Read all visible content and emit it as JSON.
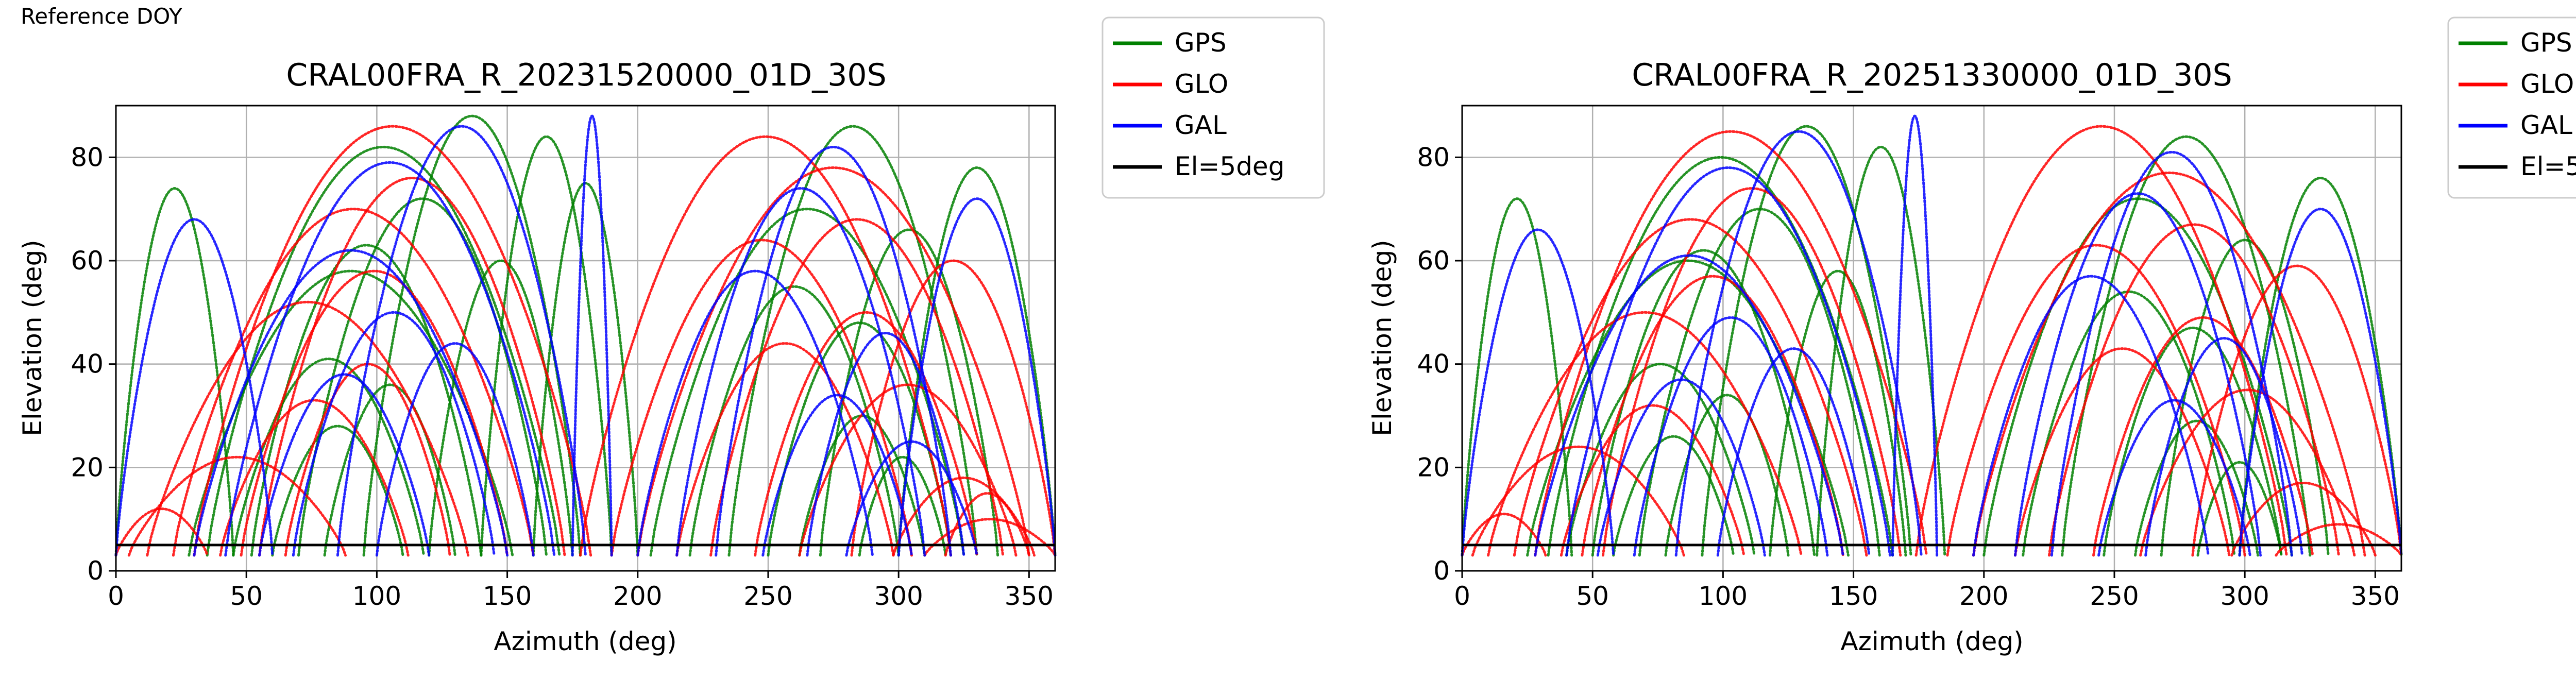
{
  "figure": {
    "caption": "Reference DOY"
  },
  "colors": {
    "GPS": "#008000",
    "GLO": "#ff0000",
    "GAL": "#0000ff",
    "cutoff": "#000000",
    "grid": "#b0b0b0"
  },
  "chart_data": [
    {
      "type": "scatter",
      "title": "CRAL00FRA_R_20231520000_01D_30S",
      "xlabel": "Azimuth (deg)",
      "ylabel": "Elevation (deg)",
      "xlim": [
        0,
        360
      ],
      "ylim": [
        0,
        90
      ],
      "xticks": [
        0,
        50,
        100,
        150,
        200,
        250,
        300,
        350
      ],
      "yticks": [
        0,
        20,
        40,
        60,
        80
      ],
      "grid": true,
      "legend_position": "outside-right",
      "legend": [
        "GPS",
        "GLO",
        "GAL",
        "El=5deg"
      ],
      "cutoff_elevation": 5,
      "series": [
        {
          "name": "GPS",
          "color": "#008000",
          "passes": [
            {
              "rise": 28,
              "set": 152,
              "peak": 58
            },
            {
              "rise": 35,
              "set": 170,
              "peak": 82
            },
            {
              "rise": 45,
              "set": 118,
              "peak": 41
            },
            {
              "rise": 52,
              "set": 140,
              "peak": 63
            },
            {
              "rise": 60,
              "set": 110,
              "peak": 28
            },
            {
              "rise": 70,
              "set": 165,
              "peak": 72
            },
            {
              "rise": 80,
              "set": 130,
              "peak": 36
            },
            {
              "rise": 95,
              "set": 178,
              "peak": 88
            },
            {
              "rise": 120,
              "set": 175,
              "peak": 60
            },
            {
              "rise": 140,
              "set": 190,
              "peak": 84
            },
            {
              "rise": 160,
              "set": 200,
              "peak": 75
            },
            {
              "rise": 205,
              "set": 325,
              "peak": 70
            },
            {
              "rise": 220,
              "set": 300,
              "peak": 55
            },
            {
              "rise": 235,
              "set": 330,
              "peak": 86
            },
            {
              "rise": 250,
              "set": 320,
              "peak": 48
            },
            {
              "rise": 262,
              "set": 310,
              "peak": 30
            },
            {
              "rise": 270,
              "set": 338,
              "peak": 66
            },
            {
              "rise": 285,
              "set": 318,
              "peak": 22
            },
            {
              "rise": 300,
              "set": 360,
              "peak": 78
            },
            {
              "rise": 0,
              "set": 45,
              "peak": 74
            }
          ]
        },
        {
          "name": "GLO",
          "color": "#ff0000",
          "passes": [
            {
              "rise": 0,
              "set": 35,
              "peak": 12
            },
            {
              "rise": 5,
              "set": 88,
              "peak": 22
            },
            {
              "rise": 12,
              "set": 135,
              "peak": 52
            },
            {
              "rise": 22,
              "set": 160,
              "peak": 70
            },
            {
              "rise": 30,
              "set": 182,
              "peak": 86
            },
            {
              "rise": 40,
              "set": 112,
              "peak": 33
            },
            {
              "rise": 48,
              "set": 150,
              "peak": 58
            },
            {
              "rise": 55,
              "set": 172,
              "peak": 76
            },
            {
              "rise": 65,
              "set": 128,
              "peak": 40
            },
            {
              "rise": 178,
              "set": 320,
              "peak": 84
            },
            {
              "rise": 190,
              "set": 305,
              "peak": 64
            },
            {
              "rise": 200,
              "set": 350,
              "peak": 78
            },
            {
              "rise": 215,
              "set": 298,
              "peak": 44
            },
            {
              "rise": 228,
              "set": 340,
              "peak": 68
            },
            {
              "rise": 245,
              "set": 330,
              "peak": 50
            },
            {
              "rise": 262,
              "set": 345,
              "peak": 36
            },
            {
              "rise": 282,
              "set": 360,
              "peak": 60
            },
            {
              "rise": 298,
              "set": 352,
              "peak": 18
            },
            {
              "rise": 310,
              "set": 360,
              "peak": 10
            },
            {
              "rise": 318,
              "set": 350,
              "peak": 15
            }
          ]
        },
        {
          "name": "GAL",
          "color": "#0000ff",
          "passes": [
            {
              "rise": 30,
              "set": 150,
              "peak": 62
            },
            {
              "rise": 42,
              "set": 168,
              "peak": 79
            },
            {
              "rise": 55,
              "set": 120,
              "peak": 38
            },
            {
              "rise": 68,
              "set": 145,
              "peak": 50
            },
            {
              "rise": 85,
              "set": 180,
              "peak": 86
            },
            {
              "rise": 100,
              "set": 160,
              "peak": 44
            },
            {
              "rise": 175,
              "set": 190,
              "peak": 88
            },
            {
              "rise": 200,
              "set": 290,
              "peak": 58
            },
            {
              "rise": 215,
              "set": 310,
              "peak": 74
            },
            {
              "rise": 230,
              "set": 320,
              "peak": 82
            },
            {
              "rise": 248,
              "set": 305,
              "peak": 34
            },
            {
              "rise": 265,
              "set": 325,
              "peak": 46
            },
            {
              "rise": 280,
              "set": 330,
              "peak": 25
            },
            {
              "rise": 300,
              "set": 360,
              "peak": 72
            },
            {
              "rise": 0,
              "set": 60,
              "peak": 68
            }
          ]
        }
      ]
    },
    {
      "type": "scatter",
      "title": "CRAL00FRA_R_20251330000_01D_30S",
      "xlabel": "Azimuth (deg)",
      "ylabel": "Elevation (deg)",
      "xlim": [
        0,
        360
      ],
      "ylim": [
        0,
        90
      ],
      "xticks": [
        0,
        50,
        100,
        150,
        200,
        250,
        300,
        350
      ],
      "yticks": [
        0,
        20,
        40,
        60,
        80
      ],
      "grid": true,
      "legend_position": "outside-right",
      "legend": [
        "GPS",
        "GLO",
        "GAL",
        "El=5deg"
      ],
      "cutoff_elevation": 5,
      "series": [
        {
          "name": "GPS",
          "color": "#008000",
          "passes": [
            {
              "rise": 25,
              "set": 148,
              "peak": 60
            },
            {
              "rise": 33,
              "set": 165,
              "peak": 80
            },
            {
              "rise": 40,
              "set": 112,
              "peak": 40
            },
            {
              "rise": 50,
              "set": 135,
              "peak": 62
            },
            {
              "rise": 58,
              "set": 104,
              "peak": 26
            },
            {
              "rise": 68,
              "set": 160,
              "peak": 70
            },
            {
              "rise": 78,
              "set": 125,
              "peak": 34
            },
            {
              "rise": 92,
              "set": 172,
              "peak": 86
            },
            {
              "rise": 118,
              "set": 170,
              "peak": 58
            },
            {
              "rise": 136,
              "set": 185,
              "peak": 82
            },
            {
              "rise": 200,
              "set": 318,
              "peak": 72
            },
            {
              "rise": 215,
              "set": 296,
              "peak": 54
            },
            {
              "rise": 230,
              "set": 325,
              "peak": 84
            },
            {
              "rise": 246,
              "set": 314,
              "peak": 47
            },
            {
              "rise": 258,
              "set": 305,
              "peak": 29
            },
            {
              "rise": 268,
              "set": 332,
              "peak": 64
            },
            {
              "rise": 282,
              "set": 314,
              "peak": 21
            },
            {
              "rise": 298,
              "set": 360,
              "peak": 76
            },
            {
              "rise": 0,
              "set": 42,
              "peak": 72
            }
          ]
        },
        {
          "name": "GLO",
          "color": "#ff0000",
          "passes": [
            {
              "rise": 0,
              "set": 32,
              "peak": 11
            },
            {
              "rise": 4,
              "set": 85,
              "peak": 24
            },
            {
              "rise": 10,
              "set": 130,
              "peak": 50
            },
            {
              "rise": 20,
              "set": 155,
              "peak": 68
            },
            {
              "rise": 28,
              "set": 178,
              "peak": 85
            },
            {
              "rise": 38,
              "set": 108,
              "peak": 32
            },
            {
              "rise": 46,
              "set": 146,
              "peak": 57
            },
            {
              "rise": 54,
              "set": 168,
              "peak": 74
            },
            {
              "rise": 174,
              "set": 316,
              "peak": 86
            },
            {
              "rise": 186,
              "set": 300,
              "peak": 63
            },
            {
              "rise": 196,
              "set": 346,
              "peak": 77
            },
            {
              "rise": 212,
              "set": 294,
              "peak": 43
            },
            {
              "rise": 225,
              "set": 336,
              "peak": 67
            },
            {
              "rise": 242,
              "set": 326,
              "peak": 49
            },
            {
              "rise": 260,
              "set": 342,
              "peak": 35
            },
            {
              "rise": 280,
              "set": 360,
              "peak": 59
            },
            {
              "rise": 295,
              "set": 350,
              "peak": 17
            },
            {
              "rise": 312,
              "set": 360,
              "peak": 9
            }
          ]
        },
        {
          "name": "GAL",
          "color": "#0000ff",
          "passes": [
            {
              "rise": 28,
              "set": 146,
              "peak": 61
            },
            {
              "rise": 40,
              "set": 164,
              "peak": 78
            },
            {
              "rise": 52,
              "set": 116,
              "peak": 37
            },
            {
              "rise": 66,
              "set": 140,
              "peak": 49
            },
            {
              "rise": 82,
              "set": 176,
              "peak": 85
            },
            {
              "rise": 98,
              "set": 156,
              "peak": 43
            },
            {
              "rise": 165,
              "set": 182,
              "peak": 88
            },
            {
              "rise": 196,
              "set": 286,
              "peak": 57
            },
            {
              "rise": 212,
              "set": 306,
              "peak": 73
            },
            {
              "rise": 226,
              "set": 318,
              "peak": 81
            },
            {
              "rise": 244,
              "set": 302,
              "peak": 33
            },
            {
              "rise": 262,
              "set": 322,
              "peak": 45
            },
            {
              "rise": 298,
              "set": 360,
              "peak": 70
            },
            {
              "rise": 0,
              "set": 58,
              "peak": 66
            }
          ]
        }
      ]
    }
  ]
}
